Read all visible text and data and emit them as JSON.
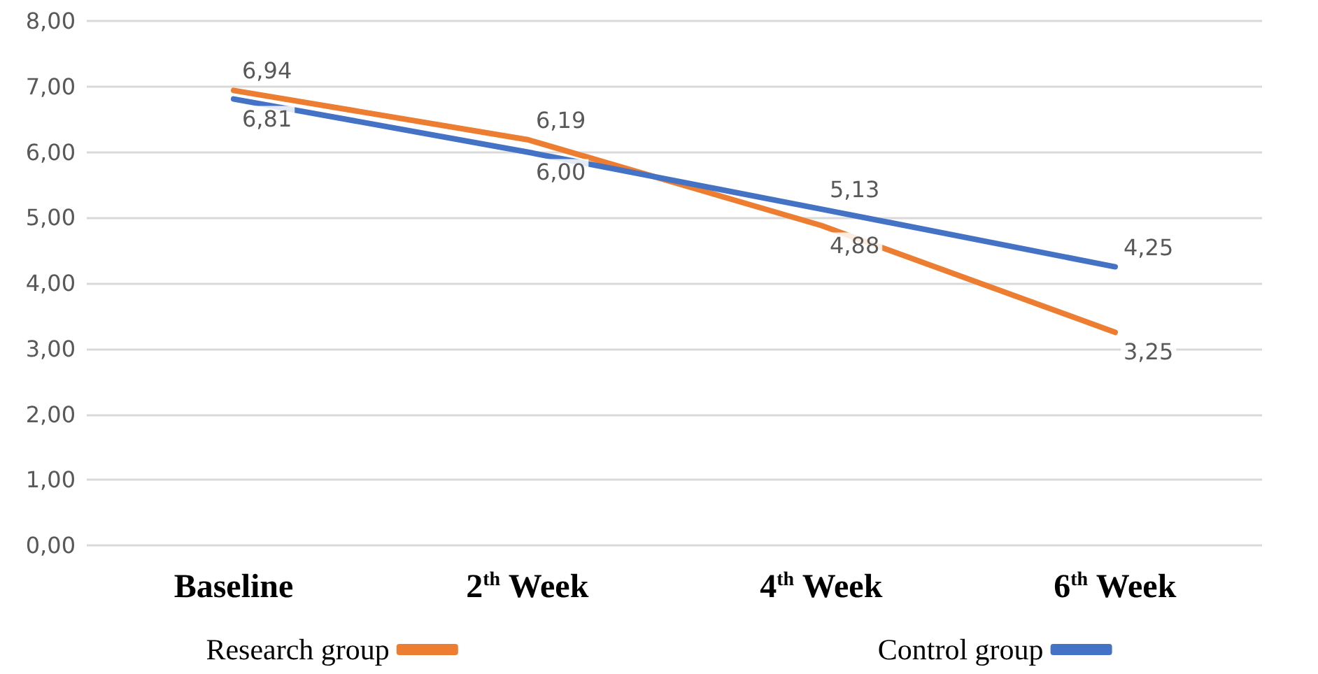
{
  "chart_data": {
    "type": "line",
    "categories": [
      "Baseline",
      "2$^{th}$ Week",
      "4$^{th}$ Week",
      "6$^{th}$ Week"
    ],
    "series": [
      {
        "name": "Research group",
        "color": "#ed7d31",
        "values": [
          6.94,
          6.19,
          4.88,
          3.25
        ],
        "value_labels": [
          "6,94",
          "6,19",
          "4,88",
          "3,25"
        ]
      },
      {
        "name": "Control group",
        "color": "#4472c4",
        "values": [
          6.81,
          6.0,
          5.13,
          4.25
        ],
        "value_labels": [
          "6,81",
          "6,00",
          "5,13",
          "4,25"
        ]
      }
    ],
    "ylim": [
      0,
      8
    ],
    "yticks": [
      {
        "value": 0,
        "label": "0,00"
      },
      {
        "value": 1,
        "label": "1,00"
      },
      {
        "value": 2,
        "label": "2,00"
      },
      {
        "value": 3,
        "label": "3,00"
      },
      {
        "value": 4,
        "label": "4,00"
      },
      {
        "value": 5,
        "label": "5,00"
      },
      {
        "value": 6,
        "label": "6,00"
      },
      {
        "value": 7,
        "label": "7,00"
      },
      {
        "value": 8,
        "label": "8,00"
      }
    ],
    "grid": "y",
    "legend": "bottom",
    "marker": "none",
    "line_style": "solid"
  }
}
